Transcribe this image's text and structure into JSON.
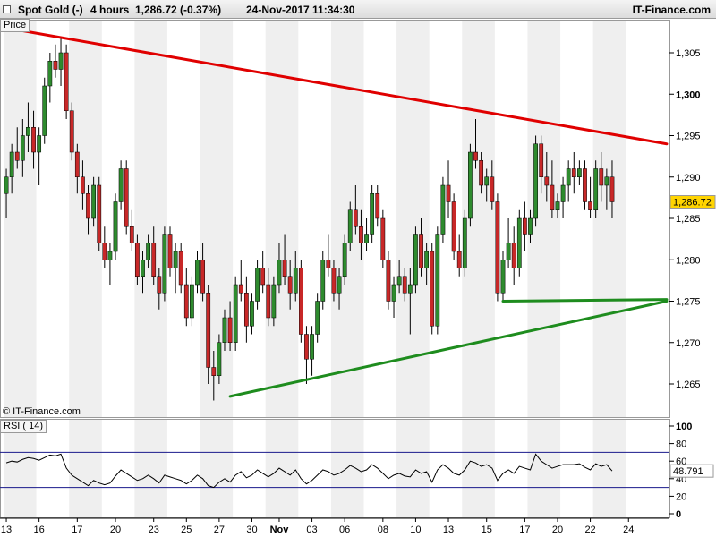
{
  "header": {
    "instrument": "Spot Gold (-)",
    "timeframe": "4 hours",
    "last_change": "1,286.72 (-0.37%)",
    "datetime": "24-Nov-2017 11:34:30",
    "brand": "IT-Finance.com"
  },
  "watermark": "© IT-Finance.com",
  "price_panel_label": "Price",
  "rsi_panel_label": "RSI ( 14)",
  "last_price_label": "1,286.72",
  "rsi_value_label": "48.791",
  "chart_data": [
    {
      "type": "candlestick",
      "title": "Spot Gold (-) 4 hours",
      "ylim": [
        1261,
        1309
      ],
      "yticks": [
        {
          "v": 1305,
          "label": "1,305"
        },
        {
          "v": 1300,
          "label": "1,300",
          "bold": true
        },
        {
          "v": 1295,
          "label": "1,295"
        },
        {
          "v": 1290,
          "label": "1,290"
        },
        {
          "v": 1285,
          "label": "1,285"
        },
        {
          "v": 1280,
          "label": "1,280"
        },
        {
          "v": 1275,
          "label": "1,275"
        },
        {
          "v": 1270,
          "label": "1,270"
        },
        {
          "v": 1265,
          "label": "1,265"
        }
      ],
      "xticks": [
        "13",
        "16",
        "17",
        "20",
        "23",
        "25",
        "27",
        "30",
        "Nov",
        "03",
        "06",
        "08",
        "10",
        "13",
        "15",
        "17",
        "20",
        "22",
        "24"
      ],
      "x_index": [
        0,
        6,
        13,
        20,
        27,
        33,
        39,
        45,
        50,
        56,
        62,
        69,
        75,
        81,
        88,
        95,
        101,
        107,
        114
      ],
      "candles": [
        [
          1288,
          1291,
          1285,
          1290
        ],
        [
          1290,
          1294,
          1288,
          1293
        ],
        [
          1293,
          1296,
          1291,
          1292
        ],
        [
          1292,
          1297,
          1290,
          1295
        ],
        [
          1295,
          1299,
          1293,
          1296
        ],
        [
          1296,
          1298,
          1291,
          1293
        ],
        [
          1293,
          1296,
          1289,
          1295
        ],
        [
          1295,
          1302,
          1294,
          1301
        ],
        [
          1301,
          1305,
          1299,
          1304
        ],
        [
          1304,
          1306,
          1302,
          1303
        ],
        [
          1303,
          1307,
          1301,
          1305
        ],
        [
          1305,
          1306,
          1297,
          1298
        ],
        [
          1298,
          1299,
          1292,
          1293
        ],
        [
          1293,
          1294,
          1288,
          1290
        ],
        [
          1290,
          1292,
          1286,
          1288
        ],
        [
          1288,
          1289,
          1283,
          1285
        ],
        [
          1285,
          1290,
          1284,
          1289
        ],
        [
          1289,
          1290,
          1281,
          1282
        ],
        [
          1282,
          1284,
          1279,
          1280
        ],
        [
          1280,
          1282,
          1277,
          1281
        ],
        [
          1281,
          1288,
          1280,
          1287
        ],
        [
          1287,
          1292,
          1286,
          1291
        ],
        [
          1291,
          1292,
          1283,
          1284
        ],
        [
          1284,
          1286,
          1281,
          1282
        ],
        [
          1282,
          1283,
          1277,
          1278
        ],
        [
          1278,
          1281,
          1276,
          1280
        ],
        [
          1280,
          1283,
          1279,
          1282
        ],
        [
          1282,
          1284,
          1277,
          1278
        ],
        [
          1278,
          1279,
          1274,
          1276
        ],
        [
          1276,
          1284,
          1275,
          1283
        ],
        [
          1283,
          1284,
          1278,
          1279
        ],
        [
          1279,
          1282,
          1276,
          1281
        ],
        [
          1281,
          1282,
          1276,
          1277
        ],
        [
          1277,
          1279,
          1272,
          1273
        ],
        [
          1273,
          1278,
          1272,
          1277
        ],
        [
          1277,
          1281,
          1276,
          1280
        ],
        [
          1280,
          1282,
          1275,
          1276
        ],
        [
          1276,
          1277,
          1265,
          1267
        ],
        [
          1267,
          1269,
          1263,
          1266
        ],
        [
          1266,
          1271,
          1265,
          1270
        ],
        [
          1270,
          1274,
          1269,
          1273
        ],
        [
          1273,
          1275,
          1269,
          1270
        ],
        [
          1270,
          1278,
          1269,
          1277
        ],
        [
          1277,
          1280,
          1275,
          1276
        ],
        [
          1276,
          1278,
          1270,
          1272
        ],
        [
          1272,
          1276,
          1271,
          1275
        ],
        [
          1275,
          1280,
          1274,
          1279
        ],
        [
          1279,
          1281,
          1276,
          1277
        ],
        [
          1277,
          1279,
          1272,
          1273
        ],
        [
          1273,
          1278,
          1272,
          1277
        ],
        [
          1277,
          1282,
          1276,
          1280
        ],
        [
          1280,
          1283,
          1277,
          1278
        ],
        [
          1278,
          1280,
          1274,
          1276
        ],
        [
          1276,
          1281,
          1275,
          1279
        ],
        [
          1279,
          1280,
          1270,
          1271
        ],
        [
          1271,
          1272,
          1265,
          1268
        ],
        [
          1268,
          1272,
          1266,
          1271
        ],
        [
          1271,
          1276,
          1270,
          1275
        ],
        [
          1275,
          1281,
          1274,
          1280
        ],
        [
          1280,
          1283,
          1278,
          1279
        ],
        [
          1279,
          1280,
          1275,
          1276
        ],
        [
          1276,
          1279,
          1274,
          1278
        ],
        [
          1278,
          1283,
          1277,
          1282
        ],
        [
          1282,
          1287,
          1281,
          1286
        ],
        [
          1286,
          1289,
          1283,
          1284
        ],
        [
          1284,
          1286,
          1280,
          1282
        ],
        [
          1282,
          1285,
          1281,
          1283
        ],
        [
          1283,
          1289,
          1282,
          1288
        ],
        [
          1288,
          1289,
          1284,
          1285
        ],
        [
          1285,
          1286,
          1279,
          1280
        ],
        [
          1280,
          1281,
          1274,
          1275
        ],
        [
          1275,
          1278,
          1273,
          1277
        ],
        [
          1277,
          1280,
          1276,
          1278
        ],
        [
          1278,
          1279,
          1275,
          1276
        ],
        [
          1276,
          1279,
          1271,
          1277
        ],
        [
          1277,
          1284,
          1276,
          1283
        ],
        [
          1283,
          1285,
          1278,
          1279
        ],
        [
          1279,
          1282,
          1277,
          1281
        ],
        [
          1281,
          1282,
          1271,
          1272
        ],
        [
          1272,
          1284,
          1271,
          1283
        ],
        [
          1283,
          1290,
          1282,
          1289
        ],
        [
          1289,
          1292,
          1285,
          1287
        ],
        [
          1287,
          1288,
          1280,
          1281
        ],
        [
          1281,
          1283,
          1278,
          1279
        ],
        [
          1279,
          1286,
          1278,
          1285
        ],
        [
          1285,
          1294,
          1284,
          1293
        ],
        [
          1293,
          1297,
          1291,
          1292
        ],
        [
          1292,
          1293,
          1288,
          1289
        ],
        [
          1289,
          1291,
          1287,
          1290
        ],
        [
          1290,
          1292,
          1286,
          1287
        ],
        [
          1287,
          1288,
          1275,
          1276
        ],
        [
          1276,
          1281,
          1275,
          1280
        ],
        [
          1280,
          1285,
          1279,
          1282
        ],
        [
          1282,
          1284,
          1277,
          1279
        ],
        [
          1279,
          1286,
          1278,
          1285
        ],
        [
          1285,
          1287,
          1281,
          1283
        ],
        [
          1283,
          1286,
          1282,
          1285
        ],
        [
          1285,
          1295,
          1284,
          1294
        ],
        [
          1294,
          1295,
          1288,
          1290
        ],
        [
          1290,
          1293,
          1287,
          1289
        ],
        [
          1289,
          1292,
          1285,
          1286
        ],
        [
          1286,
          1288,
          1285,
          1287
        ],
        [
          1287,
          1290,
          1285,
          1289
        ],
        [
          1289,
          1292,
          1287,
          1291
        ],
        [
          1291,
          1293,
          1288,
          1290
        ],
        [
          1290,
          1292,
          1289,
          1291
        ],
        [
          1291,
          1292,
          1286,
          1287
        ],
        [
          1287,
          1290,
          1285,
          1286
        ],
        [
          1286,
          1292,
          1285,
          1291
        ],
        [
          1291,
          1293,
          1287,
          1289
        ],
        [
          1289,
          1291,
          1286,
          1290
        ],
        [
          1290,
          1292,
          1285,
          1287
        ]
      ],
      "trendlines": [
        {
          "name": "resistance",
          "color": "#e00000",
          "from": {
            "x": 0,
            "y": 1308
          },
          "to": {
            "x": 121,
            "y": 1294
          }
        },
        {
          "name": "rising-support",
          "color": "#1e8c1e",
          "from": {
            "x": 41,
            "y": 1263.5
          },
          "to": {
            "x": 121,
            "y": 1275
          }
        },
        {
          "name": "horizontal-support",
          "color": "#1e8c1e",
          "from": {
            "x": 91,
            "y": 1275
          },
          "to": {
            "x": 121,
            "y": 1275.2
          }
        }
      ]
    },
    {
      "type": "line",
      "title": "RSI ( 14)",
      "ylim": [
        0,
        100
      ],
      "yticks": [
        {
          "v": 100,
          "label": "100"
        },
        {
          "v": 80,
          "label": "80"
        },
        {
          "v": 60,
          "label": "60"
        },
        {
          "v": 40,
          "label": "40"
        },
        {
          "v": 20,
          "label": "20"
        },
        {
          "v": 0,
          "label": "0"
        }
      ],
      "levels": [
        70,
        30
      ],
      "values": [
        58,
        60,
        59,
        62,
        64,
        63,
        61,
        64,
        67,
        66,
        68,
        52,
        44,
        40,
        36,
        32,
        38,
        35,
        33,
        35,
        43,
        50,
        46,
        42,
        38,
        40,
        44,
        40,
        35,
        44,
        42,
        40,
        38,
        34,
        38,
        44,
        40,
        32,
        30,
        36,
        40,
        36,
        44,
        48,
        41,
        44,
        50,
        46,
        42,
        46,
        52,
        48,
        44,
        50,
        40,
        34,
        38,
        44,
        50,
        48,
        44,
        46,
        50,
        55,
        52,
        48,
        50,
        56,
        52,
        46,
        40,
        44,
        46,
        43,
        42,
        50,
        46,
        48,
        36,
        50,
        56,
        52,
        46,
        44,
        50,
        60,
        58,
        54,
        56,
        52,
        38,
        46,
        50,
        46,
        54,
        52,
        50,
        68,
        60,
        56,
        52,
        54,
        56,
        56,
        56,
        57,
        53,
        50,
        57,
        54,
        56,
        48.8
      ]
    }
  ]
}
